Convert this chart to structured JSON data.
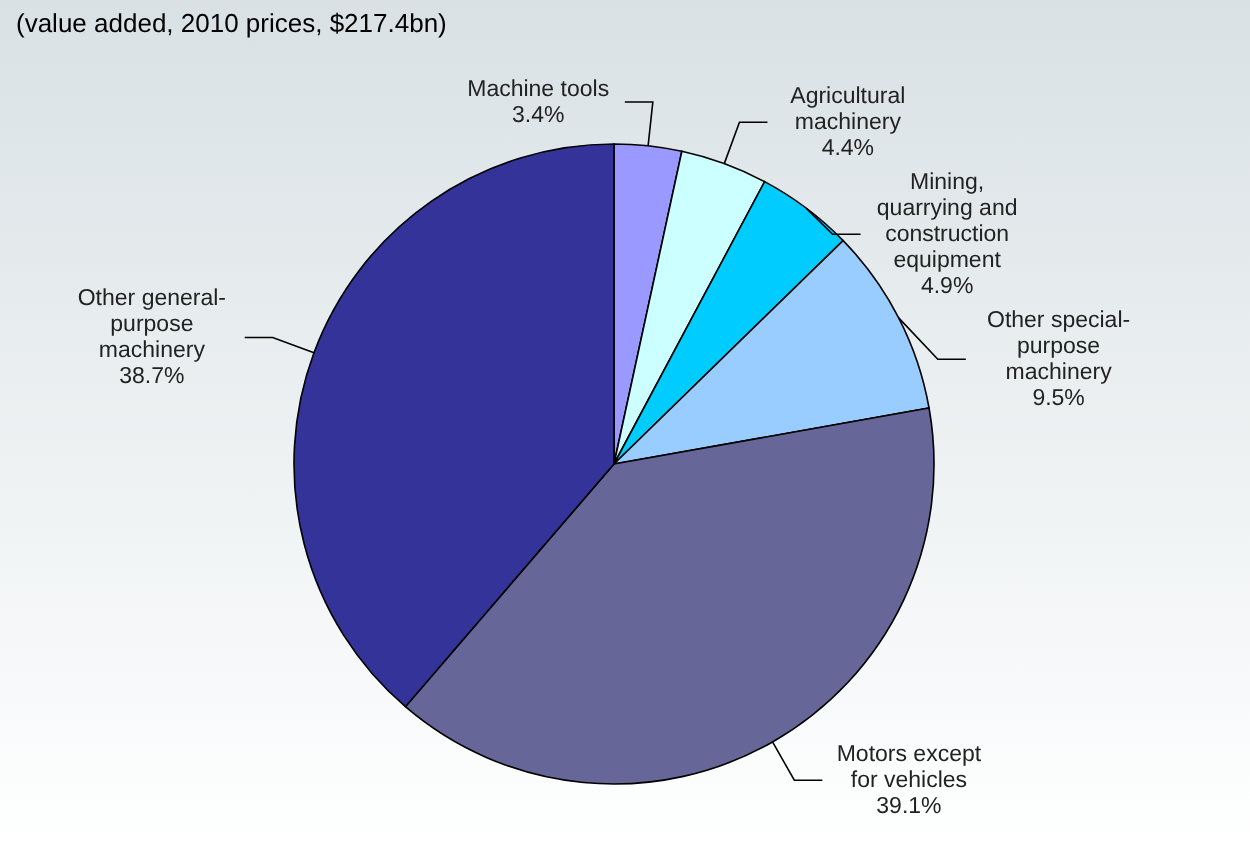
{
  "chart_data": {
    "type": "pie",
    "title": "(value added, 2010 prices, $217.4bn)",
    "categories": [
      "Machine tools",
      "Agricultural machinery",
      "Mining, quarrying and construction equipment",
      "Other special-purpose machinery",
      "Motors except for vehicles",
      "Other general-purpose machinery"
    ],
    "values": [
      3.4,
      4.4,
      4.9,
      9.5,
      39.1,
      38.7
    ],
    "colors": [
      "#9999ff",
      "#ccffff",
      "#00ccff",
      "#99ccff",
      "#666699",
      "#333399"
    ],
    "value_labels": [
      "3.4%",
      "4.4%",
      "4.9%",
      "9.5%",
      "39.1%",
      "38.7%"
    ]
  }
}
